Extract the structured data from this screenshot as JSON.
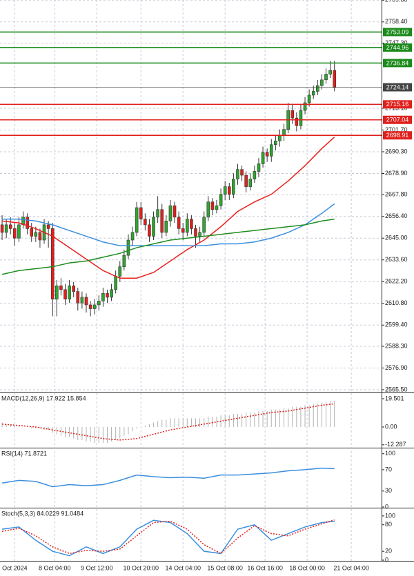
{
  "chart_data": [
    {
      "type": "candlestick",
      "xlim": [
        -0.5,
        90.2
      ],
      "ylim": [
        2564.4,
        2769.9
      ],
      "grid": true,
      "up_color": "#2ea52e",
      "down_color": "#e0201c",
      "xticks": [
        {
          "value": 3,
          "label": "Oct 2024"
        },
        {
          "value": 12.5,
          "label": "8 Oct 04:00"
        },
        {
          "value": 22.5,
          "label": "9 Oct 12:00"
        },
        {
          "value": 33,
          "label": "10 Oct 20:00"
        },
        {
          "value": 43,
          "label": "14 Oct 04:00"
        },
        {
          "value": 53,
          "label": "15 Oct 08:00"
        },
        {
          "value": 62.5,
          "label": "16 Oct 16:00"
        },
        {
          "value": 72.5,
          "label": "18 Oct 00:00"
        },
        {
          "value": 83,
          "label": "21 Oct 04:00"
        }
      ],
      "yticks": [
        {
          "value": 2769.8,
          "label": "2769.80"
        },
        {
          "value": 2758.4,
          "label": "2758.40"
        },
        {
          "value": 2747.3,
          "label": "2747.30"
        },
        {
          "value": 2713.1,
          "label": "2713.10"
        },
        {
          "value": 2701.7,
          "label": "2701.70"
        },
        {
          "value": 2690.3,
          "label": "2690.30"
        },
        {
          "value": 2678.9,
          "label": "2678.90"
        },
        {
          "value": 2667.8,
          "label": "2667.80"
        },
        {
          "value": 2656.4,
          "label": "2656.40"
        },
        {
          "value": 2645,
          "label": "2645.00"
        },
        {
          "value": 2633.6,
          "label": "2633.60"
        },
        {
          "value": 2622.2,
          "label": "2622.20"
        },
        {
          "value": 2610.8,
          "label": "2610.80"
        },
        {
          "value": 2599.4,
          "label": "2599.40"
        },
        {
          "value": 2588.3,
          "label": "2588.30"
        },
        {
          "value": 2576.9,
          "label": "2576.90"
        },
        {
          "value": 2565.5,
          "label": "2565.50"
        }
      ],
      "candles": [
        [
          2652,
          2657,
          2644,
          2648
        ],
        [
          2648,
          2655,
          2645,
          2652
        ],
        [
          2652,
          2656,
          2647,
          2650
        ],
        [
          2650,
          2653,
          2641,
          2645
        ],
        [
          2645,
          2656,
          2643,
          2652
        ],
        [
          2652,
          2659,
          2650,
          2656
        ],
        [
          2656,
          2658,
          2647,
          2650
        ],
        [
          2650,
          2653,
          2643,
          2646
        ],
        [
          2646,
          2651,
          2643,
          2648
        ],
        [
          2648,
          2650,
          2640,
          2644
        ],
        [
          2644,
          2655,
          2642,
          2652
        ],
        [
          2652,
          2654,
          2640,
          2650
        ],
        [
          2650,
          2653,
          2604,
          2613
        ],
        [
          2613,
          2623,
          2604,
          2620
        ],
        [
          2620,
          2624,
          2615,
          2618
        ],
        [
          2618,
          2621,
          2610,
          2613
        ],
        [
          2613,
          2623,
          2611,
          2620
        ],
        [
          2620,
          2622,
          2614,
          2617
        ],
        [
          2617,
          2619,
          2607,
          2611
        ],
        [
          2611,
          2617,
          2608,
          2614
        ],
        [
          2614,
          2616,
          2606,
          2610
        ],
        [
          2610,
          2612,
          2604,
          2608
        ],
        [
          2608,
          2613,
          2605,
          2610
        ],
        [
          2610,
          2615,
          2607,
          2612
        ],
        [
          2612,
          2619,
          2609,
          2616
        ],
        [
          2616,
          2618,
          2611,
          2614
        ],
        [
          2614,
          2621,
          2612,
          2618
        ],
        [
          2618,
          2628,
          2616,
          2625
        ],
        [
          2625,
          2633,
          2622,
          2630
        ],
        [
          2630,
          2639,
          2628,
          2636
        ],
        [
          2636,
          2647,
          2634,
          2644
        ],
        [
          2644,
          2651,
          2641,
          2648
        ],
        [
          2648,
          2664,
          2646,
          2661
        ],
        [
          2661,
          2664,
          2652,
          2655
        ],
        [
          2655,
          2658,
          2649,
          2652
        ],
        [
          2652,
          2655,
          2643,
          2646
        ],
        [
          2646,
          2659,
          2644,
          2656
        ],
        [
          2656,
          2667,
          2653,
          2660
        ],
        [
          2660,
          2663,
          2645,
          2648
        ],
        [
          2648,
          2657,
          2646,
          2654
        ],
        [
          2654,
          2665,
          2651,
          2662
        ],
        [
          2662,
          2664,
          2653,
          2656
        ],
        [
          2656,
          2659,
          2647,
          2650
        ],
        [
          2650,
          2653,
          2644,
          2648
        ],
        [
          2648,
          2658,
          2646,
          2655
        ],
        [
          2655,
          2657,
          2647,
          2650
        ],
        [
          2650,
          2652,
          2640,
          2646
        ],
        [
          2646,
          2651,
          2643,
          2648
        ],
        [
          2648,
          2659,
          2646,
          2656
        ],
        [
          2656,
          2667,
          2654,
          2664
        ],
        [
          2664,
          2666,
          2657,
          2660
        ],
        [
          2660,
          2665,
          2658,
          2662
        ],
        [
          2662,
          2671,
          2660,
          2668
        ],
        [
          2668,
          2675,
          2665,
          2672
        ],
        [
          2672,
          2674,
          2665,
          2668
        ],
        [
          2668,
          2679,
          2666,
          2676
        ],
        [
          2676,
          2684,
          2673,
          2681
        ],
        [
          2681,
          2683,
          2675,
          2678
        ],
        [
          2678,
          2680,
          2669,
          2672
        ],
        [
          2672,
          2679,
          2670,
          2676
        ],
        [
          2676,
          2683,
          2674,
          2680
        ],
        [
          2680,
          2687,
          2677,
          2684
        ],
        [
          2684,
          2693,
          2682,
          2690
        ],
        [
          2690,
          2692,
          2685,
          2688
        ],
        [
          2688,
          2697,
          2685,
          2694
        ],
        [
          2694,
          2699,
          2691,
          2696
        ],
        [
          2696,
          2702,
          2693,
          2699
        ],
        [
          2699,
          2705,
          2696,
          2702
        ],
        [
          2702,
          2716,
          2700,
          2712
        ],
        [
          2712,
          2715,
          2705,
          2708
        ],
        [
          2708,
          2711,
          2701,
          2704
        ],
        [
          2704,
          2715,
          2702,
          2712
        ],
        [
          2712,
          2719,
          2710,
          2716
        ],
        [
          2716,
          2723,
          2714,
          2720
        ],
        [
          2720,
          2725,
          2718,
          2722
        ],
        [
          2722,
          2728,
          2720,
          2725
        ],
        [
          2725,
          2731,
          2723,
          2728
        ],
        [
          2728,
          2734,
          2726,
          2731
        ],
        [
          2731,
          2738,
          2729,
          2733
        ],
        [
          2733,
          2738,
          2722,
          2724
        ]
      ],
      "series": [
        {
          "color": "#e8201c",
          "x": [
            0,
            4,
            8,
            12,
            16,
            20,
            24,
            28,
            32,
            36,
            40,
            44,
            48,
            52,
            56,
            60,
            64,
            68,
            72,
            76,
            79
          ],
          "values": [
            2654,
            2653,
            2650,
            2646,
            2640,
            2634,
            2628,
            2624,
            2624,
            2627,
            2633,
            2639,
            2644,
            2651,
            2659,
            2664,
            2668,
            2675,
            2683,
            2692,
            2698
          ]
        },
        {
          "color": "#3a8ee0",
          "x": [
            0,
            4,
            8,
            12,
            16,
            20,
            24,
            28,
            32,
            36,
            40,
            44,
            48,
            52,
            56,
            60,
            64,
            68,
            72,
            76,
            79
          ],
          "values": [
            2655,
            2655,
            2654,
            2652,
            2649,
            2646,
            2643,
            2641,
            2641,
            2641,
            2641,
            2641,
            2641,
            2642,
            2642,
            2643,
            2645,
            2648,
            2652,
            2658,
            2663
          ]
        },
        {
          "color": "#1e8c1e",
          "x": [
            0,
            4,
            8,
            12,
            16,
            20,
            24,
            28,
            32,
            36,
            40,
            44,
            48,
            52,
            56,
            60,
            64,
            68,
            72,
            76,
            79
          ],
          "values": [
            2626,
            2628,
            2629,
            2630,
            2632,
            2633,
            2635,
            2637,
            2640,
            2642,
            2644,
            2645,
            2646,
            2647,
            2648,
            2649,
            2650,
            2651,
            2652,
            2654,
            2655
          ]
        }
      ],
      "levels": [
        {
          "value": 2753.09,
          "color": "#1a8a1a"
        },
        {
          "value": 2744.96,
          "color": "#1a8a1a"
        },
        {
          "value": 2736.84,
          "color": "#1a8a1a"
        },
        {
          "value": 2724.14,
          "color": "#444444"
        },
        {
          "value": 2715.16,
          "color": "#e0201c"
        },
        {
          "value": 2707.04,
          "color": "#e0201c"
        },
        {
          "value": 2698.91,
          "color": "#e0201c"
        }
      ]
    },
    {
      "type": "histogram",
      "title": "MACD(12,26,9) 17.922 15.854",
      "ylim": [
        -13.8,
        23.3
      ],
      "yticks": [
        19.501,
        {
          "value": 0,
          "label": "0.00"
        },
        -12.287
      ],
      "color": "#b0b0b0",
      "values": [
        3,
        2,
        2,
        1,
        1,
        0,
        0,
        -1,
        -1,
        -1,
        -2,
        -2,
        -4,
        -5,
        -6,
        -7,
        -7,
        -8,
        -9,
        -9,
        -10,
        -10,
        -11,
        -11,
        -11,
        -11,
        -10,
        -9,
        -8,
        -6,
        -5,
        -3,
        -1,
        0,
        1,
        2,
        3,
        4,
        5,
        5,
        6,
        6,
        6,
        6,
        6,
        6,
        6,
        6,
        6,
        7,
        7,
        7,
        8,
        8,
        8,
        9,
        9,
        9,
        10,
        10,
        10,
        11,
        11,
        11,
        12,
        12,
        12,
        13,
        13,
        14,
        14,
        14,
        15,
        15,
        16,
        16,
        17,
        17,
        18,
        18
      ],
      "series": [
        {
          "color": "#e0201c",
          "x": [
            0,
            4,
            8,
            12,
            16,
            20,
            24,
            28,
            32,
            36,
            40,
            44,
            48,
            52,
            56,
            60,
            64,
            68,
            72,
            76,
            79
          ],
          "values": [
            2,
            1,
            0,
            -2,
            -4,
            -6,
            -8,
            -9,
            -8,
            -5,
            -2,
            0,
            2,
            4,
            6,
            8,
            10,
            11,
            13,
            15,
            16
          ]
        }
      ]
    },
    {
      "type": "line",
      "title": "RSI(14) 71.8721",
      "ylim": [
        0,
        110
      ],
      "yticks": [
        100,
        70,
        30,
        0
      ],
      "series": [
        {
          "color": "#3a8ee0",
          "x": [
            0,
            4,
            8,
            12,
            16,
            20,
            24,
            28,
            32,
            36,
            40,
            44,
            48,
            52,
            56,
            60,
            64,
            68,
            72,
            76,
            79
          ],
          "values": [
            45,
            50,
            48,
            38,
            42,
            40,
            42,
            50,
            60,
            57,
            55,
            56,
            54,
            60,
            60,
            62,
            64,
            68,
            70,
            73,
            72
          ]
        }
      ]
    },
    {
      "type": "line",
      "title": "Stoch(5,3,3) 84.0229 91.0484",
      "ylim": [
        0,
        117
      ],
      "yticks": [
        100,
        80,
        20,
        0
      ],
      "series": [
        {
          "color": "#3a8ee0",
          "x": [
            0,
            4,
            8,
            12,
            16,
            20,
            24,
            28,
            32,
            36,
            40,
            44,
            48,
            52,
            56,
            60,
            64,
            68,
            72,
            76,
            79
          ],
          "values": [
            70,
            75,
            45,
            20,
            10,
            30,
            15,
            30,
            70,
            90,
            85,
            60,
            20,
            15,
            70,
            80,
            45,
            60,
            75,
            85,
            88
          ]
        },
        {
          "color": "#e0201c",
          "dash": true,
          "x": [
            0,
            4,
            8,
            12,
            16,
            20,
            24,
            28,
            32,
            36,
            40,
            44,
            48,
            52,
            56,
            60,
            64,
            68,
            72,
            76,
            79
          ],
          "values": [
            65,
            72,
            55,
            30,
            15,
            22,
            20,
            25,
            55,
            85,
            88,
            70,
            35,
            15,
            50,
            78,
            60,
            55,
            70,
            82,
            91
          ]
        }
      ]
    }
  ]
}
